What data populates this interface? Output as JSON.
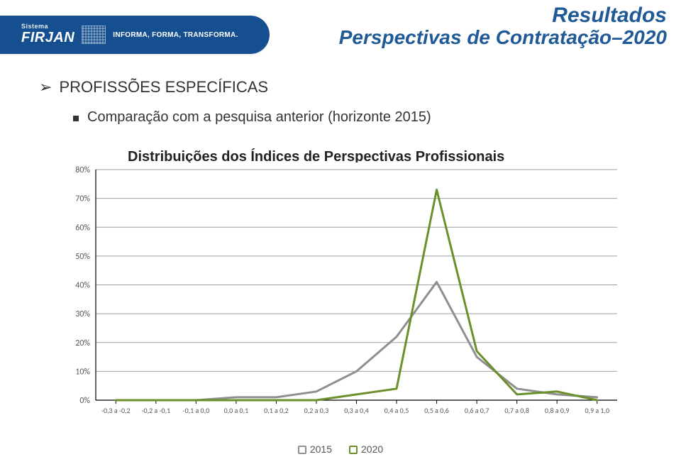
{
  "banner": {
    "small_label": "Sistema",
    "brand": "FIRJAN",
    "tagline": "INFORMA, FORMA, TRANSFORMA.",
    "bg_color": "#154f8f",
    "text_color": "#ffffff"
  },
  "headings": {
    "line1": "Resultados",
    "line2": "Perspectivas de Contratação–2020",
    "color": "#1f5a97"
  },
  "bullets": {
    "chevron": "➢",
    "level1": "PROFISSÕES ESPECÍFICAS",
    "level2": "Comparação com a pesquisa anterior (horizonte 2015)"
  },
  "chart": {
    "type": "line",
    "title": "Distribuições dos Índices de Perspectivas Profissionais",
    "title_fontsize": 20,
    "title_color": "#222222",
    "background_color": "#ffffff",
    "plot_bg": "#ffffff",
    "axis_line_color": "#000000",
    "grid_color": "#9aa0a4",
    "grid_width": 1,
    "line_width": 3,
    "ylim": [
      0,
      0.8
    ],
    "ytick_step": 0.1,
    "y_format": "percent",
    "ytick_labels": [
      "0%",
      "10%",
      "20%",
      "30%",
      "40%",
      "50%",
      "60%",
      "70%",
      "80%"
    ],
    "x_categories": [
      "-0,3 a -0,2",
      "-0,2 a -0,1",
      "-0,1 a 0,0",
      "0,0 a 0,1",
      "0,1 a 0,2",
      "0,2 a 0,3",
      "0,3 a 0,4",
      "0,4 a 0,5",
      "0,5 a 0,6",
      "0,6 a 0,7",
      "0,7 a 0,8",
      "0,8 a 0,9",
      "0,9 a 1,0"
    ],
    "x_label_fontsize": 10,
    "y_label_fontsize": 12,
    "series": [
      {
        "name": "2015",
        "color": "#8f8f8f",
        "values": [
          0.0,
          0.0,
          0.0,
          0.01,
          0.01,
          0.03,
          0.1,
          0.22,
          0.41,
          0.15,
          0.04,
          0.02,
          0.01
        ]
      },
      {
        "name": "2020",
        "color": "#6b8f2a",
        "values": [
          0.0,
          0.0,
          0.0,
          0.0,
          0.0,
          0.0,
          0.02,
          0.04,
          0.73,
          0.17,
          0.02,
          0.03,
          0.0
        ]
      }
    ],
    "legend": {
      "items": [
        "2015",
        "2020"
      ],
      "marker_shape": "square",
      "text_color": "#595959",
      "fontsize": 14
    }
  }
}
